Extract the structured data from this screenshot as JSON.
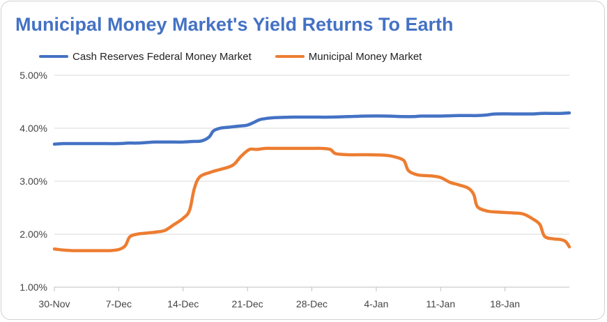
{
  "chart_data": {
    "type": "line",
    "title": "Municipal Money Market's Yield Returns To Earth",
    "xlabel": "",
    "ylabel": "",
    "x_tick_labels": [
      "30-Nov",
      "7-Dec",
      "14-Dec",
      "21-Dec",
      "28-Dec",
      "4-Jan",
      "11-Jan",
      "18-Jan"
    ],
    "y_tick_labels": [
      "1.00%",
      "2.00%",
      "3.00%",
      "4.00%",
      "5.00%"
    ],
    "ylim": [
      1.0,
      5.0
    ],
    "xlim_days": [
      0,
      56
    ],
    "grid": "horizontal",
    "legend_position": "top",
    "series": [
      {
        "name": "Cash Reserves Federal Money Market",
        "color": "#4472c4",
        "points": [
          [
            0,
            3.7
          ],
          [
            1,
            3.71
          ],
          [
            3,
            3.71
          ],
          [
            5,
            3.71
          ],
          [
            7,
            3.71
          ],
          [
            8,
            3.72
          ],
          [
            9,
            3.72
          ],
          [
            10,
            3.73
          ],
          [
            11,
            3.74
          ],
          [
            13,
            3.74
          ],
          [
            14,
            3.74
          ],
          [
            15,
            3.75
          ],
          [
            16,
            3.76
          ],
          [
            16.8,
            3.83
          ],
          [
            17.3,
            3.95
          ],
          [
            18,
            4.0
          ],
          [
            19,
            4.02
          ],
          [
            20,
            4.04
          ],
          [
            21,
            4.06
          ],
          [
            21.8,
            4.12
          ],
          [
            22.5,
            4.17
          ],
          [
            24,
            4.2
          ],
          [
            26,
            4.21
          ],
          [
            28,
            4.21
          ],
          [
            30,
            4.21
          ],
          [
            32,
            4.22
          ],
          [
            34,
            4.23
          ],
          [
            36,
            4.23
          ],
          [
            38,
            4.22
          ],
          [
            39,
            4.22
          ],
          [
            40,
            4.23
          ],
          [
            42,
            4.23
          ],
          [
            44,
            4.24
          ],
          [
            46,
            4.24
          ],
          [
            47,
            4.25
          ],
          [
            48,
            4.27
          ],
          [
            50,
            4.27
          ],
          [
            52,
            4.27
          ],
          [
            53,
            4.28
          ],
          [
            55,
            4.28
          ],
          [
            56,
            4.29
          ]
        ]
      },
      {
        "name": "Municipal Money Market",
        "color": "#ed7d31",
        "points": [
          [
            0,
            1.72
          ],
          [
            1,
            1.7
          ],
          [
            2,
            1.69
          ],
          [
            3,
            1.69
          ],
          [
            4,
            1.69
          ],
          [
            5,
            1.69
          ],
          [
            6,
            1.69
          ],
          [
            7,
            1.71
          ],
          [
            7.7,
            1.78
          ],
          [
            8.2,
            1.95
          ],
          [
            9,
            2.0
          ],
          [
            10,
            2.02
          ],
          [
            11,
            2.04
          ],
          [
            12,
            2.07
          ],
          [
            13,
            2.18
          ],
          [
            14,
            2.3
          ],
          [
            14.7,
            2.45
          ],
          [
            15.2,
            2.85
          ],
          [
            15.8,
            3.08
          ],
          [
            17,
            3.17
          ],
          [
            18,
            3.22
          ],
          [
            19,
            3.27
          ],
          [
            19.6,
            3.33
          ],
          [
            20.3,
            3.47
          ],
          [
            21.2,
            3.6
          ],
          [
            22,
            3.6
          ],
          [
            23,
            3.62
          ],
          [
            24,
            3.62
          ],
          [
            26,
            3.62
          ],
          [
            28,
            3.62
          ],
          [
            29,
            3.62
          ],
          [
            30,
            3.6
          ],
          [
            30.6,
            3.52
          ],
          [
            32,
            3.5
          ],
          [
            34,
            3.5
          ],
          [
            36,
            3.49
          ],
          [
            37,
            3.46
          ],
          [
            38,
            3.39
          ],
          [
            38.5,
            3.2
          ],
          [
            39.5,
            3.12
          ],
          [
            41,
            3.1
          ],
          [
            42,
            3.07
          ],
          [
            43,
            2.98
          ],
          [
            44,
            2.93
          ],
          [
            45,
            2.87
          ],
          [
            45.6,
            2.75
          ],
          [
            46,
            2.52
          ],
          [
            47,
            2.44
          ],
          [
            48,
            2.42
          ],
          [
            50,
            2.4
          ],
          [
            51,
            2.38
          ],
          [
            52,
            2.29
          ],
          [
            52.8,
            2.18
          ],
          [
            53.3,
            1.96
          ],
          [
            54.3,
            1.91
          ],
          [
            55,
            1.9
          ],
          [
            55.6,
            1.86
          ],
          [
            56,
            1.76
          ]
        ]
      }
    ]
  }
}
